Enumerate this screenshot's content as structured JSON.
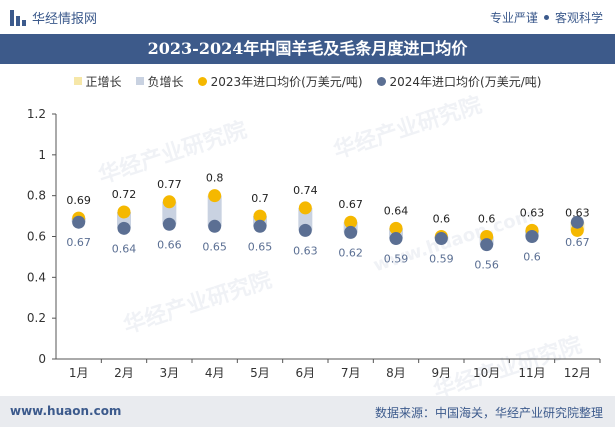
{
  "header": {
    "brand": "华经情报网",
    "tagline_left": "专业严谨",
    "tagline_right": "客观科学"
  },
  "footer": {
    "website": "www.huaon.com",
    "source": "数据来源：中国海关，华经产业研究院整理"
  },
  "colors": {
    "brand_blue": "#3d5a8a",
    "series_2023": "#f5b800",
    "series_2024": "#5b6f93",
    "bar_increase": "#f6e7a8",
    "bar_decrease": "#c9d2e1"
  },
  "chart_data": {
    "type": "scatter",
    "title": "2023-2024年中国羊毛及毛条月度进口均价",
    "legend": [
      "正增长",
      "负增长",
      "2023年进口均价(万美元/吨)",
      "2024年进口均价(万美元/吨)"
    ],
    "categories": [
      "1月",
      "2月",
      "3月",
      "4月",
      "5月",
      "6月",
      "7月",
      "8月",
      "9月",
      "10月",
      "11月",
      "12月"
    ],
    "series": [
      {
        "name": "2023年进口均价(万美元/吨)",
        "values": [
          0.69,
          0.72,
          0.77,
          0.8,
          0.7,
          0.74,
          0.67,
          0.64,
          0.6,
          0.6,
          0.63,
          0.63
        ]
      },
      {
        "name": "2024年进口均价(万美元/吨)",
        "values": [
          0.67,
          0.64,
          0.66,
          0.65,
          0.65,
          0.63,
          0.62,
          0.59,
          0.59,
          0.56,
          0.6,
          0.67
        ]
      }
    ],
    "ylim": [
      0,
      1.2
    ],
    "yticks": [
      "0",
      "0.2",
      "0.4",
      "0.6",
      "0.8",
      "1",
      "1.2"
    ],
    "legend_position": "top-center",
    "grid": false
  },
  "watermarks": [
    "华经产业研究院",
    "华经产业研究院",
    "华经产业研究院",
    "华经产业研究院",
    "www.huaon.com"
  ]
}
